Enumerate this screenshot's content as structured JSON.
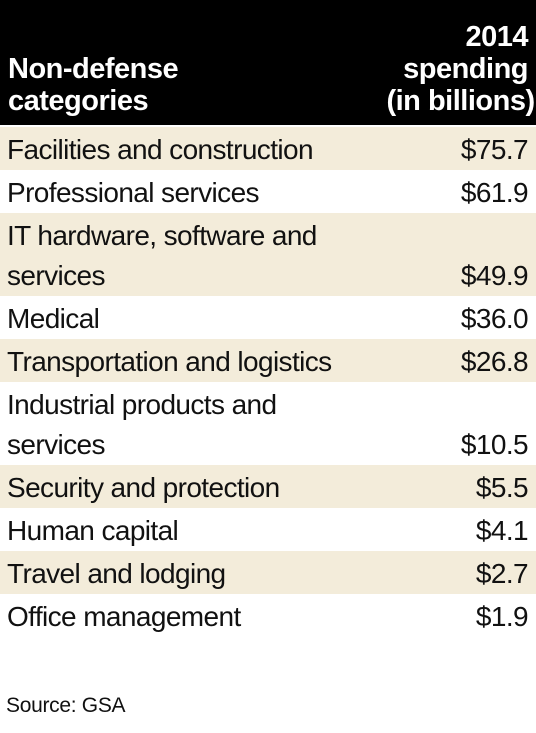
{
  "header": {
    "category_line1": "Non-defense",
    "category_line2": "categories",
    "spending_line1": "2014",
    "spending_line2": "spending",
    "spending_line3": "(in billions)"
  },
  "rows": [
    {
      "category": "Facilities and construction",
      "value": "$75.7"
    },
    {
      "category": "Professional services",
      "value": "$61.9"
    },
    {
      "category_line1": "IT hardware, software and",
      "category_line2": "services",
      "value": "$49.9"
    },
    {
      "category": "Medical",
      "value": "$36.0"
    },
    {
      "category": "Transportation and logistics",
      "value": "$26.8"
    },
    {
      "category_line1": "Industrial products and",
      "category_line2": "services",
      "value": "$10.5"
    },
    {
      "category": "Security and protection",
      "value": "$5.5"
    },
    {
      "category": "Human capital",
      "value": "$4.1"
    },
    {
      "category": "Travel and lodging",
      "value": "$2.7"
    },
    {
      "category": "Office management",
      "value": "$1.9"
    }
  ],
  "source": "Source: GSA",
  "colors": {
    "header_bg": "#000000",
    "shaded_row": "#f3ecda",
    "plain_row": "#ffffff"
  }
}
